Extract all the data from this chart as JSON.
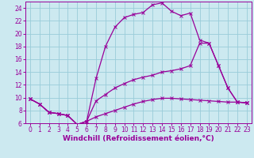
{
  "xlabel": "Windchill (Refroidissement éolien,°C)",
  "bg_color": "#cce9f0",
  "grid_color": "#99ccd9",
  "line_color": "#990099",
  "xlim": [
    -0.5,
    23.5
  ],
  "ylim": [
    6,
    25
  ],
  "xticks": [
    0,
    1,
    2,
    3,
    4,
    5,
    6,
    7,
    8,
    9,
    10,
    11,
    12,
    13,
    14,
    15,
    16,
    17,
    18,
    19,
    20,
    21,
    22,
    23
  ],
  "yticks": [
    6,
    8,
    10,
    12,
    14,
    16,
    18,
    20,
    22,
    24
  ],
  "line1_x": [
    0,
    1,
    2,
    3,
    4,
    5,
    6,
    7,
    8,
    9,
    10,
    11,
    12,
    13,
    14,
    15,
    16,
    17,
    18,
    19,
    20,
    21,
    22,
    23
  ],
  "line1_y": [
    9.8,
    9.0,
    7.7,
    7.5,
    7.2,
    5.8,
    6.3,
    7.0,
    7.5,
    8.0,
    8.5,
    9.0,
    9.4,
    9.7,
    9.9,
    9.9,
    9.8,
    9.7,
    9.6,
    9.5,
    9.4,
    9.3,
    9.3,
    9.2
  ],
  "line2_x": [
    0,
    1,
    2,
    3,
    4,
    5,
    6,
    7,
    8,
    9,
    10,
    11,
    12,
    13,
    14,
    15,
    16,
    17,
    18,
    19,
    20,
    21,
    22,
    23
  ],
  "line2_y": [
    9.8,
    9.0,
    7.7,
    7.5,
    7.2,
    5.8,
    6.3,
    13.0,
    18.0,
    21.0,
    22.5,
    23.0,
    23.3,
    24.5,
    24.8,
    23.5,
    22.8,
    23.2,
    19.0,
    18.5,
    15.0,
    11.5,
    9.3,
    9.2
  ],
  "line3_x": [
    0,
    1,
    2,
    3,
    4,
    5,
    6,
    7,
    8,
    9,
    10,
    11,
    12,
    13,
    14,
    15,
    16,
    17,
    18,
    19,
    20,
    21,
    22,
    23
  ],
  "line3_y": [
    9.8,
    9.0,
    7.7,
    7.5,
    7.2,
    5.8,
    6.3,
    9.5,
    10.5,
    11.5,
    12.2,
    12.8,
    13.2,
    13.5,
    14.0,
    14.2,
    14.5,
    15.0,
    18.5,
    18.5,
    15.0,
    11.5,
    9.3,
    9.2
  ],
  "tick_fontsize": 5.5,
  "label_fontsize": 6.5
}
